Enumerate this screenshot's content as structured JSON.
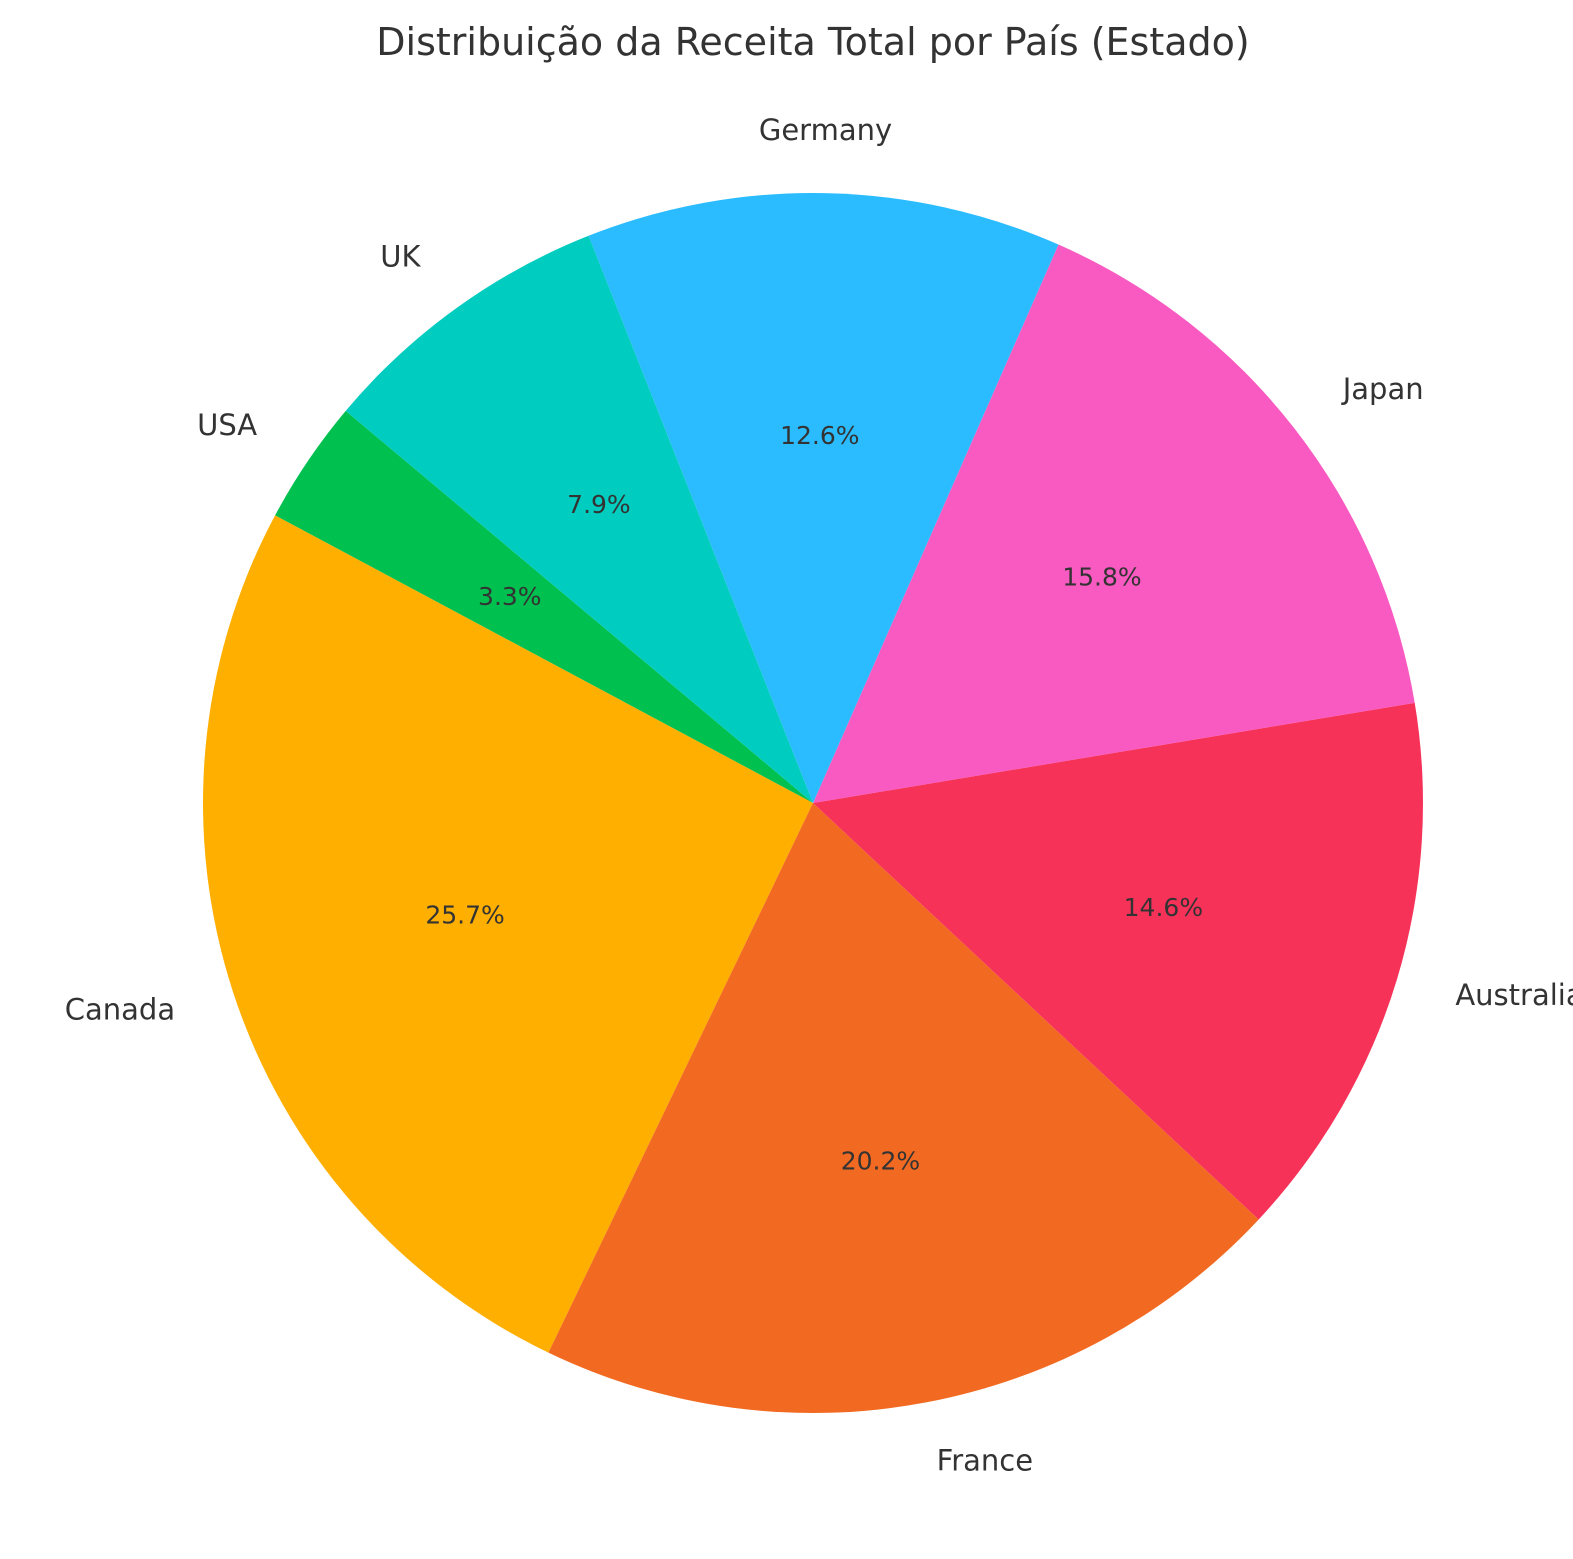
{
  "chart_data": {
    "type": "pie",
    "title": "Distribuição da Receita Total por País (Estado)",
    "slices": [
      {
        "label": "USA",
        "value": 3.3,
        "pct_label": "3.3%",
        "color": "#00C04F"
      },
      {
        "label": "Canada",
        "value": 25.7,
        "pct_label": "25.7%",
        "color": "#FFAF00"
      },
      {
        "label": "France",
        "value": 20.2,
        "pct_label": "20.2%",
        "color": "#F26A21"
      },
      {
        "label": "Australia",
        "value": 14.6,
        "pct_label": "14.6%",
        "color": "#F73259"
      },
      {
        "label": "Japan",
        "value": 15.8,
        "pct_label": "15.8%",
        "color": "#F85AC1"
      },
      {
        "label": "Germany",
        "value": 12.6,
        "pct_label": "12.6%",
        "color": "#2BBCFF"
      },
      {
        "label": "UK",
        "value": 7.9,
        "pct_label": "7.9%",
        "color": "#00CCBF"
      }
    ],
    "start_angle_deg": 140,
    "direction": "counterclockwise",
    "legend": "none"
  }
}
